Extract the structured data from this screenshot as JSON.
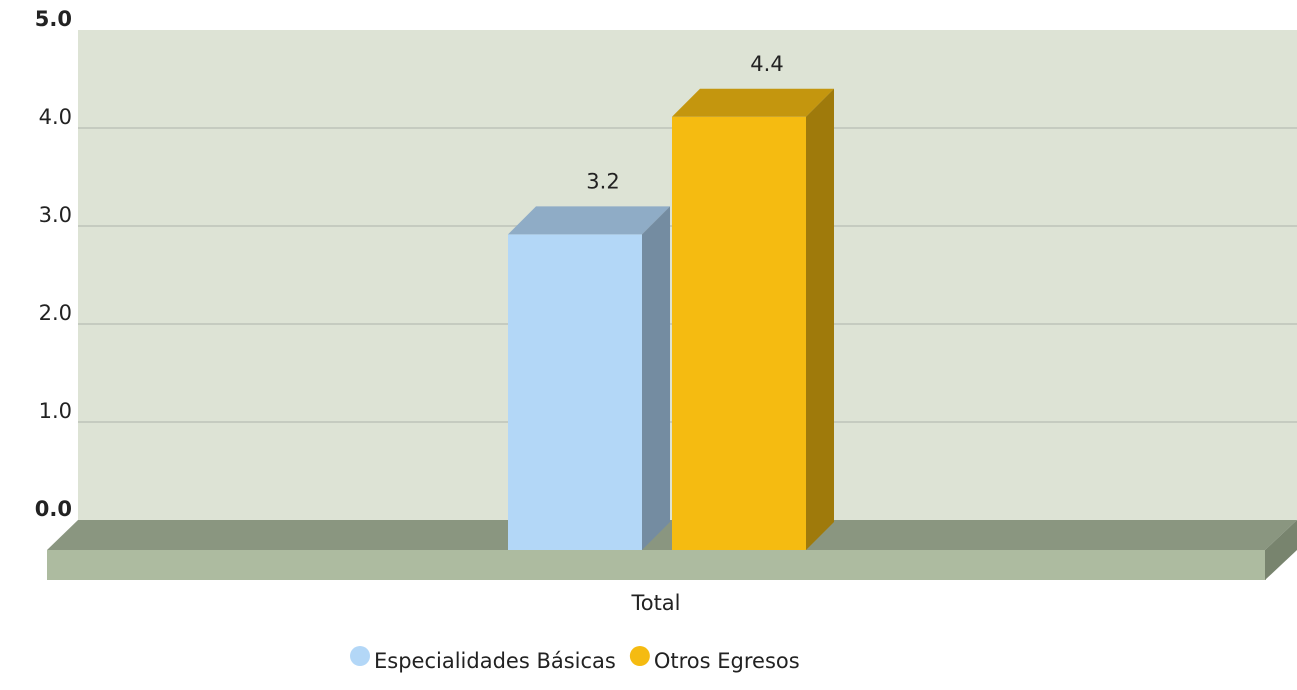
{
  "chart_data": {
    "type": "bar3d",
    "categories": [
      "Total"
    ],
    "series": [
      {
        "name": "Especialidades Básicas",
        "color": "#b3d7f7",
        "values": [
          3.2
        ]
      },
      {
        "name": "Otros Egresos",
        "color": "#f5bb11",
        "values": [
          4.4
        ]
      }
    ],
    "ylim": [
      0,
      5
    ],
    "yticks": [
      {
        "value": 0,
        "label": "0.0"
      },
      {
        "value": 1,
        "label": "1.0"
      },
      {
        "value": 2,
        "label": "2.0"
      },
      {
        "value": 3,
        "label": "3.0"
      },
      {
        "value": 4,
        "label": "4.0"
      },
      {
        "value": 5,
        "label": "5.0"
      }
    ],
    "grid": true,
    "legend": "bottom"
  }
}
